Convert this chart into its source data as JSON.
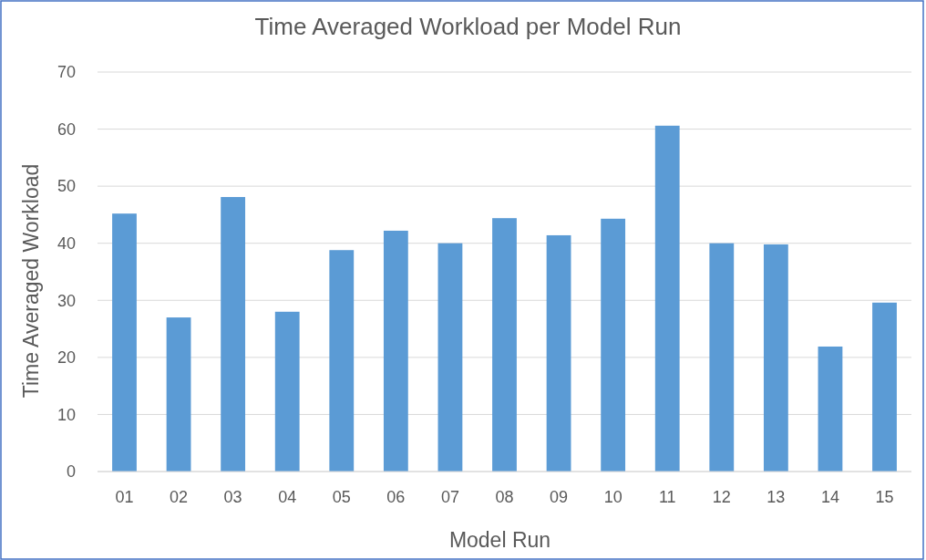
{
  "chart_data": {
    "type": "bar",
    "title": "Time Averaged Workload per Model Run",
    "xlabel": "Model Run",
    "ylabel": "Time Averaged Workload",
    "categories": [
      "01",
      "02",
      "03",
      "04",
      "05",
      "06",
      "07",
      "08",
      "09",
      "10",
      "11",
      "12",
      "13",
      "14",
      "15"
    ],
    "values": [
      45.2,
      27.0,
      48.1,
      28.0,
      38.8,
      42.2,
      40.0,
      44.4,
      41.4,
      44.3,
      60.6,
      40.0,
      39.8,
      21.9,
      29.6
    ],
    "color": "#5b9bd5",
    "ylim": [
      0,
      70
    ],
    "yticks": [
      0,
      10,
      20,
      30,
      40,
      50,
      60,
      70
    ],
    "grid": "y"
  }
}
